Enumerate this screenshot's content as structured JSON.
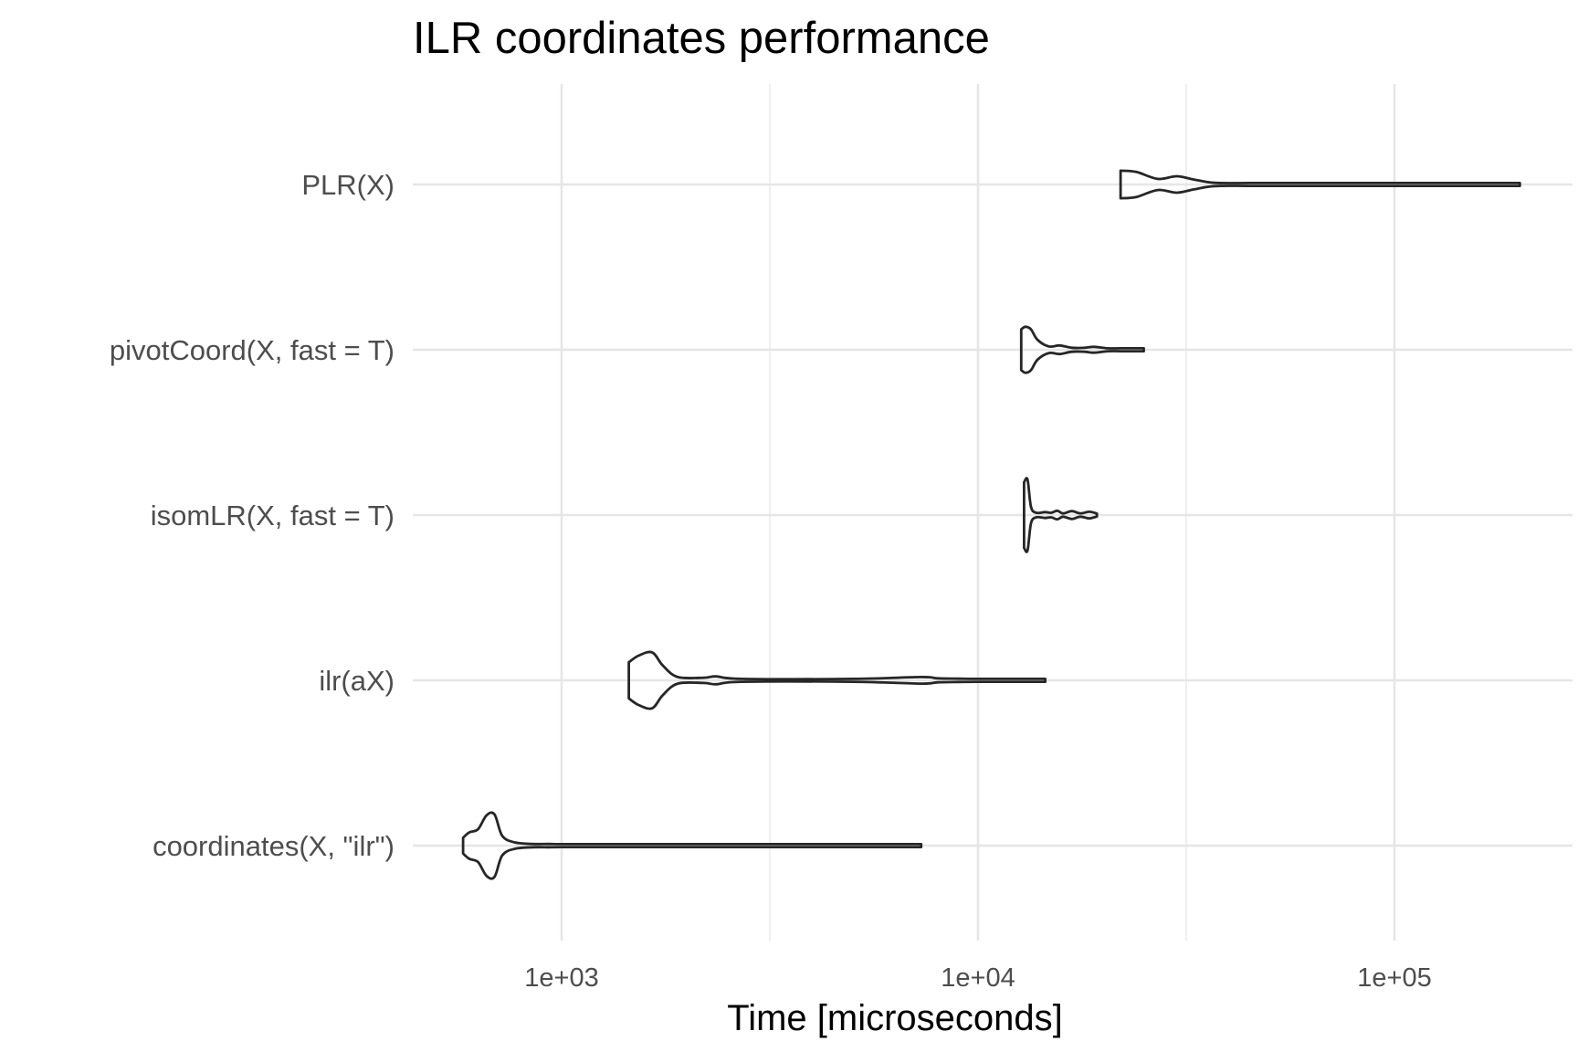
{
  "chart_data": {
    "type": "violin",
    "title": "ILR coordinates performance",
    "xlabel": "Time [microseconds]",
    "ylabel": "",
    "x_scale": "log10",
    "xlim": [
      400,
      250000
    ],
    "x_ticks": [
      1000,
      10000,
      100000
    ],
    "x_tick_labels": [
      "1e+03",
      "1e+04",
      "1e+05"
    ],
    "grid": true,
    "colors": {
      "outline": "#262626",
      "grid": "#e6e6e6",
      "text": "#4d4d4d"
    },
    "categories": [
      "coordinates(X, \"ilr\")",
      "ilr(aX)",
      "isomLR(X, fast = T)",
      "pivotCoord(X, fast = T)",
      "PLR(X)"
    ],
    "series": [
      {
        "category": "coordinates(X, \"ilr\")",
        "min": 580,
        "max": 7300,
        "density": [
          [
            580,
            0.24
          ],
          [
            600,
            0.4
          ],
          [
            630,
            0.5
          ],
          [
            660,
            0.92
          ],
          [
            690,
            0.95
          ],
          [
            720,
            0.3
          ],
          [
            770,
            0.1
          ],
          [
            850,
            0.05
          ],
          [
            930,
            0.05
          ],
          [
            1000,
            0.03
          ],
          [
            1300,
            0.03
          ],
          [
            2000,
            0.015
          ],
          [
            7300,
            0.015
          ]
        ]
      },
      {
        "category": "ilr(aX)",
        "min": 1450,
        "max": 14500,
        "density": [
          [
            1450,
            0.55
          ],
          [
            1530,
            0.75
          ],
          [
            1650,
            0.85
          ],
          [
            1750,
            0.45
          ],
          [
            1900,
            0.1
          ],
          [
            2200,
            0.08
          ],
          [
            2350,
            0.12
          ],
          [
            2700,
            0.04
          ],
          [
            5000,
            0.03
          ],
          [
            7300,
            0.1
          ],
          [
            8000,
            0.06
          ],
          [
            9000,
            0.05
          ],
          [
            10000,
            0.03
          ],
          [
            14500,
            0.02
          ]
        ]
      },
      {
        "category": "isomLR(X, fast = T)",
        "min": 12900,
        "max": 19300,
        "density": [
          [
            12900,
            1.0
          ],
          [
            13150,
            1.08
          ],
          [
            13400,
            0.25
          ],
          [
            13800,
            0.07
          ],
          [
            14500,
            0.09
          ],
          [
            15000,
            0.07
          ],
          [
            15500,
            0.13
          ],
          [
            16000,
            0.05
          ],
          [
            16800,
            0.12
          ],
          [
            17600,
            0.05
          ],
          [
            18500,
            0.1
          ],
          [
            19300,
            0.02
          ]
        ]
      },
      {
        "category": "pivotCoord(X, fast = T)",
        "min": 12700,
        "max": 25000,
        "density": [
          [
            12700,
            0.62
          ],
          [
            13000,
            0.7
          ],
          [
            13400,
            0.62
          ],
          [
            13900,
            0.3
          ],
          [
            14800,
            0.1
          ],
          [
            15700,
            0.13
          ],
          [
            16800,
            0.06
          ],
          [
            18000,
            0.06
          ],
          [
            19000,
            0.09
          ],
          [
            20500,
            0.04
          ],
          [
            22000,
            0.04
          ],
          [
            25000,
            0.02
          ]
        ]
      },
      {
        "category": "PLR(X)",
        "min": 22000,
        "max": 200000,
        "density": [
          [
            22000,
            0.42
          ],
          [
            24000,
            0.38
          ],
          [
            27000,
            0.17
          ],
          [
            30000,
            0.25
          ],
          [
            33000,
            0.15
          ],
          [
            37000,
            0.05
          ],
          [
            45000,
            0.02
          ],
          [
            60000,
            0.015
          ],
          [
            200000,
            0.015
          ]
        ]
      }
    ]
  }
}
